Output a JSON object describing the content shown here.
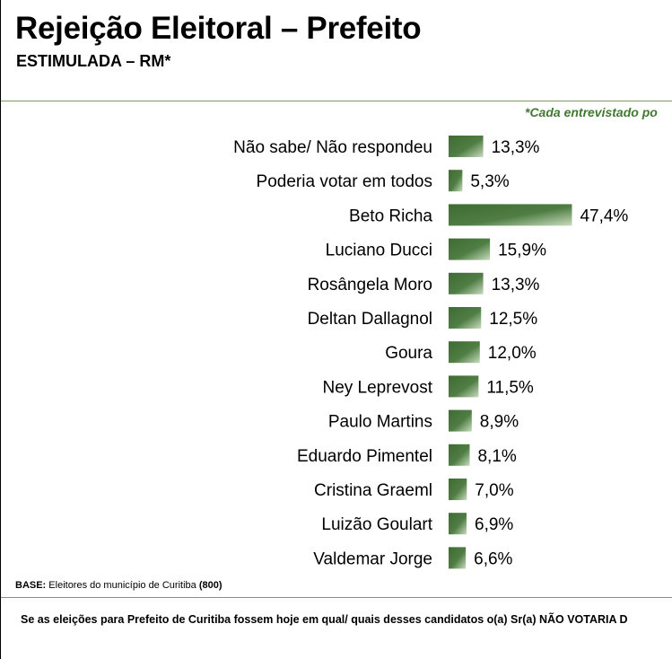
{
  "header": {
    "title": "Rejeição Eleitoral – Prefeito",
    "subtitle": "ESTIMULADA – RM*"
  },
  "note": "*Cada entrevistado po",
  "footer": {
    "base_label": "BASE:",
    "base_text": " Eleitores do município de Curitiba ",
    "base_count": "(800)",
    "question": "Se as eleições para Prefeito de Curitiba fossem hoje em qual/ quais desses candidatos o(a) Sr(a) NÃO VOTARIA D"
  },
  "colors": {
    "bar_dark": "#3d6b32",
    "bar_light": "#c9dcc0",
    "rule": "#7a9a6a",
    "note": "#3f7a30"
  },
  "chart_data": {
    "type": "bar",
    "orientation": "horizontal",
    "categories": [
      "Não sabe/ Não respondeu",
      "Poderia votar em todos",
      "Beto Richa",
      "Luciano Ducci",
      "Rosângela Moro",
      "Deltan Dallagnol",
      "Goura",
      "Ney Leprevost",
      "Paulo Martins",
      "Eduardo Pimentel",
      "Cristina Graeml",
      "Luizão Goulart",
      "Valdemar Jorge"
    ],
    "values": [
      13.3,
      5.3,
      47.4,
      15.9,
      13.3,
      12.5,
      12.0,
      11.5,
      8.9,
      8.1,
      7.0,
      6.9,
      6.6
    ],
    "value_labels": [
      "13,3%",
      "5,3%",
      "47,4%",
      "15,9%",
      "13,3%",
      "12,5%",
      "12,0%",
      "11,5%",
      "8,9%",
      "8,1%",
      "7,0%",
      "6,9%",
      "6,6%"
    ],
    "grid": false,
    "legend": "none"
  }
}
